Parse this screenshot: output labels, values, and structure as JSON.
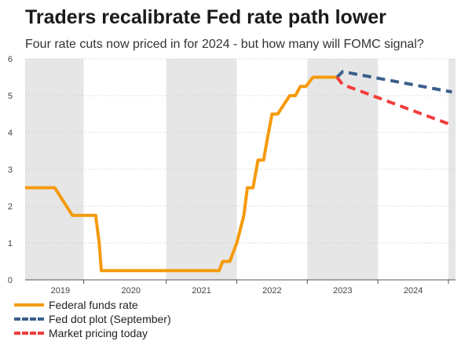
{
  "chart_data": {
    "type": "line",
    "title": "Traders recalibrate Fed rate path lower",
    "subtitle": "Four rate cuts now priced in for 2024 - but how many will FOMC signal?",
    "xlabel": "",
    "ylabel": "",
    "xlim": [
      2018.5,
      2024.6
    ],
    "ylim": [
      0,
      6
    ],
    "y_ticks": [
      0,
      1,
      2,
      3,
      4,
      5,
      6
    ],
    "x_tick_labels": [
      "2019",
      "2020",
      "2021",
      "2022",
      "2023",
      "2024"
    ],
    "x_tick_positions": [
      2019.0,
      2020.0,
      2021.0,
      2022.0,
      2023.0,
      2024.0
    ],
    "shaded_years": [
      [
        2018.5,
        2019.33
      ],
      [
        2020.5,
        2021.5
      ],
      [
        2022.5,
        2023.5
      ],
      [
        2024.5,
        2024.6
      ]
    ],
    "grid": "horizontal",
    "legend_position": "bottom-left",
    "series": [
      {
        "name": "Federal funds rate",
        "color": "#f59a0c",
        "style": "solid",
        "points": [
          [
            2018.5,
            2.5
          ],
          [
            2018.92,
            2.5
          ],
          [
            2019.17,
            1.75
          ],
          [
            2019.5,
            1.75
          ],
          [
            2019.55,
            1.0
          ],
          [
            2019.58,
            0.25
          ],
          [
            2021.25,
            0.25
          ],
          [
            2021.3,
            0.5
          ],
          [
            2021.4,
            0.5
          ],
          [
            2021.5,
            1.0
          ],
          [
            2021.6,
            1.75
          ],
          [
            2021.65,
            2.5
          ],
          [
            2021.73,
            2.5
          ],
          [
            2021.8,
            3.25
          ],
          [
            2021.88,
            3.25
          ],
          [
            2021.95,
            4.0
          ],
          [
            2022.0,
            4.5
          ],
          [
            2022.08,
            4.5
          ],
          [
            2022.25,
            5.0
          ],
          [
            2022.33,
            5.0
          ],
          [
            2022.4,
            5.25
          ],
          [
            2022.48,
            5.25
          ],
          [
            2022.58,
            5.5
          ],
          [
            2022.92,
            5.5
          ]
        ]
      },
      {
        "name": "Fed dot plot (September)",
        "color": "#3a5e89",
        "style": "dashed",
        "points": [
          [
            2022.92,
            5.5
          ],
          [
            2023.0,
            5.65
          ],
          [
            2024.55,
            5.1
          ]
        ]
      },
      {
        "name": "Market pricing today",
        "color": "#f23d3d",
        "style": "dashed",
        "points": [
          [
            2022.92,
            5.5
          ],
          [
            2023.0,
            5.3
          ],
          [
            2024.55,
            4.2
          ]
        ]
      }
    ]
  }
}
